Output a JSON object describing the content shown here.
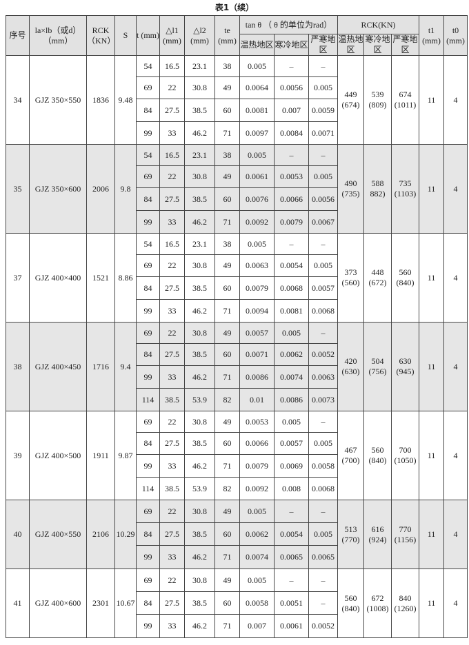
{
  "title": "表1（续）",
  "header": {
    "no": "序号",
    "size": "la×lb（或d）（mm）",
    "rck": "RCK（KN）",
    "s": "S",
    "t": "t (mm)",
    "dl1": "△l1 (mm)",
    "dl2": "△l2 (mm)",
    "te": "te (mm)",
    "tan": "tan θ （ θ 的单位为rad）",
    "rckkn": "RCK(KN)",
    "hot": "温热地区",
    "cold": "寒冷地区",
    "severe": "严寒地区",
    "t1": "t1 (mm)",
    "t0": "t0 (mm)"
  },
  "groups": [
    {
      "no": "34",
      "size": "GJZ 350×550",
      "rck": "1836",
      "s": "9.48",
      "hot": "449 (674)",
      "cold": "539 (809)",
      "severe": "674 (1011)",
      "t1": "11",
      "t0": "4",
      "rows": [
        [
          "54",
          "16.5",
          "23.1",
          "38",
          "0.005",
          "–",
          "–"
        ],
        [
          "69",
          "22",
          "30.8",
          "49",
          "0.0064",
          "0.0056",
          "0.005"
        ],
        [
          "84",
          "27.5",
          "38.5",
          "60",
          "0.0081",
          "0.007",
          "0.0059"
        ],
        [
          "99",
          "33",
          "46.2",
          "71",
          "0.0097",
          "0.0084",
          "0.0071"
        ]
      ]
    },
    {
      "no": "35",
      "size": "GJZ 350×600",
      "rck": "2006",
      "s": "9.8",
      "hot": "490 (735)",
      "cold": "588 882)",
      "severe": "735 (1103)",
      "t1": "11",
      "t0": "4",
      "rows": [
        [
          "54",
          "16.5",
          "23.1",
          "38",
          "0.005",
          "–",
          "–"
        ],
        [
          "69",
          "22",
          "30.8",
          "49",
          "0.0061",
          "0.0053",
          "0.005"
        ],
        [
          "84",
          "27.5",
          "38.5",
          "60",
          "0.0076",
          "0.0066",
          "0.0056"
        ],
        [
          "99",
          "33",
          "46.2",
          "71",
          "0.0092",
          "0.0079",
          "0.0067"
        ]
      ]
    },
    {
      "no": "37",
      "size": "GJZ 400×400",
      "rck": "1521",
      "s": "8.86",
      "hot": "373 (560)",
      "cold": "448 (672)",
      "severe": "560 (840)",
      "t1": "11",
      "t0": "4",
      "rows": [
        [
          "54",
          "16.5",
          "23.1",
          "38",
          "0.005",
          "–",
          "–"
        ],
        [
          "69",
          "22",
          "30.8",
          "49",
          "0.0063",
          "0.0054",
          "0.005"
        ],
        [
          "84",
          "27.5",
          "38.5",
          "60",
          "0.0079",
          "0.0068",
          "0.0057"
        ],
        [
          "99",
          "33",
          "46.2",
          "71",
          "0.0094",
          "0.0081",
          "0.0068"
        ]
      ]
    },
    {
      "no": "38",
      "size": "GJZ 400×450",
      "rck": "1716",
      "s": "9.4",
      "hot": "420 (630)",
      "cold": "504 (756)",
      "severe": "630 (945)",
      "t1": "11",
      "t0": "4",
      "rows": [
        [
          "69",
          "22",
          "30.8",
          "49",
          "0.0057",
          "0.005",
          "–"
        ],
        [
          "84",
          "27.5",
          "38.5",
          "60",
          "0.0071",
          "0.0062",
          "0.0052"
        ],
        [
          "99",
          "33",
          "46.2",
          "71",
          "0.0086",
          "0.0074",
          "0.0063"
        ],
        [
          "114",
          "38.5",
          "53.9",
          "82",
          "0.01",
          "0.0086",
          "0.0073"
        ]
      ]
    },
    {
      "no": "39",
      "size": "GJZ 400×500",
      "rck": "1911",
      "s": "9.87",
      "hot": "467 (700)",
      "cold": "560 (840)",
      "severe": "700 (1050)",
      "t1": "11",
      "t0": "4",
      "rows": [
        [
          "69",
          "22",
          "30.8",
          "49",
          "0.0053",
          "0.005",
          "–"
        ],
        [
          "84",
          "27.5",
          "38.5",
          "60",
          "0.0066",
          "0.0057",
          "0.005"
        ],
        [
          "99",
          "33",
          "46.2",
          "71",
          "0.0079",
          "0.0069",
          "0.0058"
        ],
        [
          "114",
          "38.5",
          "53.9",
          "82",
          "0.0092",
          "0.008",
          "0.0068"
        ]
      ]
    },
    {
      "no": "40",
      "size": "GJZ 400×550",
      "rck": "2106",
      "s": "10.29",
      "hot": "513 (770)",
      "cold": "616 (924)",
      "severe": "770 (1156)",
      "t1": "11",
      "t0": "4",
      "rows": [
        [
          "69",
          "22",
          "30.8",
          "49",
          "0.005",
          "–",
          "–"
        ],
        [
          "84",
          "27.5",
          "38.5",
          "60",
          "0.0062",
          "0.0054",
          "0.005"
        ],
        [
          "99",
          "33",
          "46.2",
          "71",
          "0.0074",
          "0.0065",
          "0.0065"
        ]
      ]
    },
    {
      "no": "41",
      "size": "GJZ 400×600",
      "rck": "2301",
      "s": "10.67",
      "hot": "560 (840)",
      "cold": "672 (1008)",
      "severe": "840 (1260)",
      "t1": "11",
      "t0": "4",
      "rows": [
        [
          "69",
          "22",
          "30.8",
          "49",
          "0.005",
          "–",
          "–"
        ],
        [
          "84",
          "27.5",
          "38.5",
          "60",
          "0.0058",
          "0.0051",
          "–"
        ],
        [
          "99",
          "33",
          "46.2",
          "71",
          "0.007",
          "0.0061",
          "0.0052"
        ]
      ]
    }
  ]
}
